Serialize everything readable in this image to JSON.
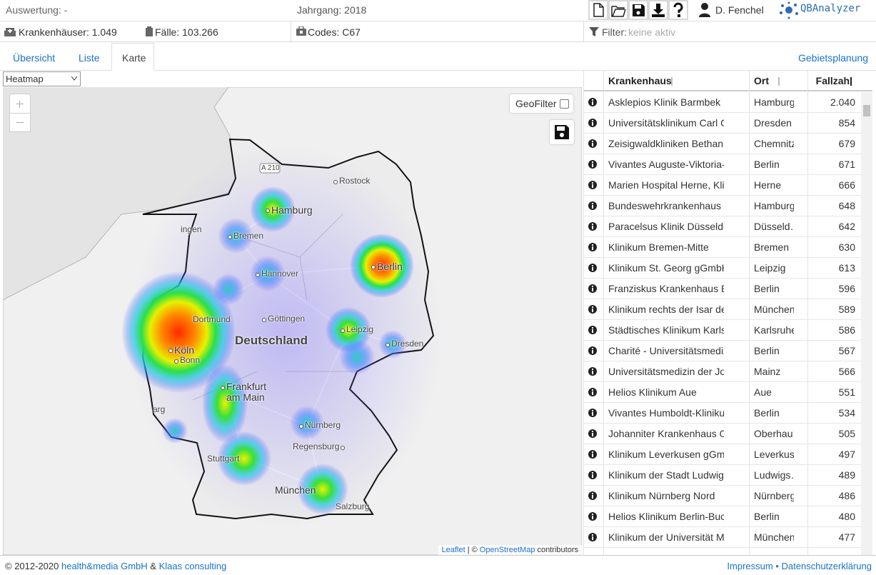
{
  "header": {
    "evaluation": "Auswertung: -",
    "year": "Jahrgang: 2018",
    "user": "D. Fenchel",
    "logo": "QBAnalyzer"
  },
  "stats": {
    "hospitals": "Krankenhäuser: 1.049",
    "cases": "Fälle: 103.266",
    "codes": "Codes: C67",
    "filter_label": "Filter:",
    "filter_value": "keine aktiv"
  },
  "tabs": [
    "Übersicht",
    "Liste",
    "Karte"
  ],
  "tab_right": "Gebietsplanung",
  "map": {
    "layer_select": "Heatmap",
    "geofilter": "GeoFilter",
    "road": "A 210",
    "country": "Deutschland",
    "cities": [
      "Rostock",
      "Hamburg",
      "ingen",
      "Bremen",
      "Hannover",
      "Berlin",
      "Dortmund",
      "Göttingen",
      "Leipzig",
      "Dresden",
      "Köln",
      "Bonn",
      "Frankfurt am Main",
      "arg",
      "Nürnberg",
      "Regensburg",
      "Stuttgart",
      "München",
      "Salzburg"
    ],
    "attribution": {
      "leaflet": "Leaflet",
      "separator": "| ©",
      "osm": "OpenStreetMap",
      "suffix": "contributors"
    }
  },
  "table": {
    "columns": [
      "Krankenhaus",
      "Ort",
      "Fallzahl"
    ],
    "rows": [
      [
        "Asklepios Klinik Barmbek",
        "Hamburg",
        "2.040"
      ],
      [
        "Universitätsklinikum Carl Gus…",
        "Dresden",
        "854"
      ],
      [
        "Zeisigwaldkliniken Bethanien…",
        "Chemnitz",
        "679"
      ],
      [
        "Vivantes Auguste-Viktoria-Kl…",
        "Berlin",
        "671"
      ],
      [
        "Marien Hospital Herne, Klinik…",
        "Herne",
        "666"
      ],
      [
        "Bundeswehrkrankenhaus Ha…",
        "Hamburg",
        "648"
      ],
      [
        "Paracelsus Klinik Düsseldorf …",
        "Düsseld…",
        "642"
      ],
      [
        "Klinikum Bremen-Mitte",
        "Bremen",
        "630"
      ],
      [
        "Klinikum St. Georg gGmbH",
        "Leipzig",
        "613"
      ],
      [
        "Franziskus Krankenhaus Berlin",
        "Berlin",
        "596"
      ],
      [
        "Klinikum rechts der Isar der T…",
        "München",
        "589"
      ],
      [
        "Städtisches Klinikum Karlsruhe",
        "Karlsruhe",
        "586"
      ],
      [
        "Charité - Universitätsmedizin…",
        "Berlin",
        "567"
      ],
      [
        "Universitätsmedizin der Joha…",
        "Mainz",
        "566"
      ],
      [
        "Helios Klinikum Aue",
        "Aue",
        "551"
      ],
      [
        "Vivantes Humboldt-Klinikum",
        "Berlin",
        "534"
      ],
      [
        "Johanniter Krankenhaus Obe…",
        "Oberhau…",
        "505"
      ],
      [
        "Klinikum Leverkusen gGmbH",
        "Leverkus…",
        "497"
      ],
      [
        "Klinikum der Stadt Ludwigsh…",
        "Ludwigs…",
        "489"
      ],
      [
        "Klinikum Nürnberg Nord",
        "Nürnberg",
        "486"
      ],
      [
        "Helios Klinikum Berlin-Buch",
        "Berlin",
        "480"
      ],
      [
        "Klinikum der Universität Mün…",
        "München",
        "477"
      ]
    ]
  },
  "footer": {
    "copyright": "© 2012-2020",
    "company1": "health&media GmbH",
    "amp": "&",
    "company2": "Klaas consulting",
    "imprint": "Impressum",
    "dot": "•",
    "privacy": "Datenschutzerklärung"
  }
}
